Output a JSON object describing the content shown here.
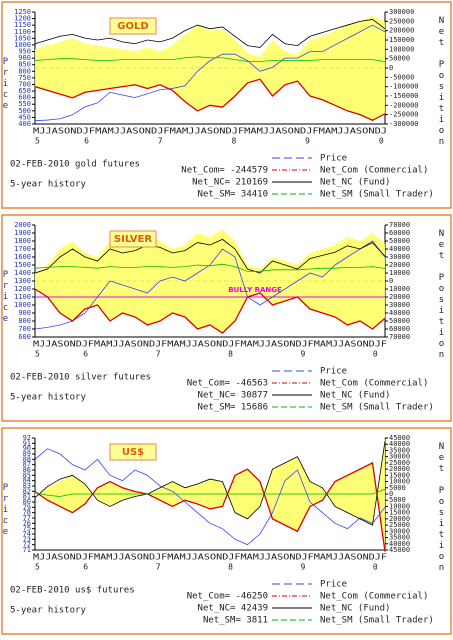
{
  "chart_data": [
    {
      "type": "line",
      "title": "GOLD",
      "subtitle": "02-FEB-2010  gold futures",
      "note": "5-year history",
      "y_label": "Price",
      "y2_label": "Net Position",
      "month_letters": "MJJASONDJFMAMJJASONDJFMAMJJASONDJFMAMJJASONDJFMAMJJASONDJ",
      "year_labels": [
        "5",
        "6",
        "7",
        "8",
        "9",
        "0"
      ],
      "annotations": [
        "Net_Com= -244579",
        "Net_NC= 210169",
        "Net_SM= 34410"
      ],
      "ylim": [
        400,
        1250
      ],
      "yticks": [
        400,
        450,
        500,
        550,
        600,
        650,
        700,
        750,
        800,
        850,
        900,
        950,
        1000,
        1050,
        1100,
        1150,
        1200,
        1250
      ],
      "y2lim": [
        -300000,
        300000
      ],
      "y2ticks": [
        -300000,
        -250000,
        -200000,
        -150000,
        -100000,
        -50000,
        0,
        50000,
        100000,
        150000,
        200000,
        250000,
        300000
      ],
      "series": [
        {
          "name": "Price",
          "color": "#3344ff",
          "values": [
            425,
            430,
            440,
            470,
            530,
            560,
            640,
            620,
            600,
            630,
            660,
            670,
            690,
            800,
            880,
            930,
            930,
            880,
            800,
            830,
            900,
            900,
            950,
            950,
            1000,
            1050,
            1100,
            1150,
            1100
          ]
        },
        {
          "name": "Net_Com (Commercial)",
          "color": "#dd0000",
          "axis": "y2",
          "fill": "#ffff66",
          "values": [
            -100000,
            -120000,
            -140000,
            -160000,
            -130000,
            -120000,
            -110000,
            -100000,
            -90000,
            -110000,
            -90000,
            -120000,
            -180000,
            -230000,
            -200000,
            -210000,
            -150000,
            -80000,
            -60000,
            -150000,
            -90000,
            -70000,
            -150000,
            -170000,
            -200000,
            -230000,
            -250000,
            -280000,
            -245000
          ]
        },
        {
          "name": "Net_NC (Fund)",
          "color": "#000000",
          "axis": "y2",
          "values": [
            130000,
            150000,
            170000,
            180000,
            160000,
            150000,
            160000,
            140000,
            130000,
            150000,
            140000,
            160000,
            200000,
            230000,
            210000,
            220000,
            170000,
            120000,
            110000,
            180000,
            130000,
            120000,
            170000,
            190000,
            210000,
            230000,
            250000,
            260000,
            210000
          ]
        },
        {
          "name": "Net_SM (Small Trader)",
          "color": "#00bb00",
          "axis": "y2",
          "values": [
            40000,
            45000,
            50000,
            50000,
            45000,
            40000,
            40000,
            45000,
            45000,
            45000,
            45000,
            45000,
            55000,
            60000,
            55000,
            55000,
            45000,
            35000,
            35000,
            40000,
            40000,
            40000,
            40000,
            45000,
            45000,
            45000,
            45000,
            45000,
            34000
          ]
        }
      ]
    },
    {
      "type": "line",
      "title": "SILVER",
      "subtitle": "02-FEB-2010  silver futures",
      "note": "5-year history",
      "y_label": "Price",
      "y2_label": "Net Position",
      "month_letters": "MJJASONDJFMAMJJASONDJFMAMJJASONDJFMAMJJASONDJFMAMJJASONDJF",
      "year_labels": [
        "5",
        "6",
        "7",
        "8",
        "9",
        "0"
      ],
      "annotations": [
        "Net_Com= -46563",
        "Net_NC= 30877",
        "Net_SM= 15686"
      ],
      "range_label": "BULLY RANGE",
      "range_value": 1100,
      "ylim": [
        600,
        2000
      ],
      "yticks": [
        600,
        700,
        800,
        900,
        1000,
        1100,
        1200,
        1300,
        1400,
        1500,
        1600,
        1700,
        1800,
        1900,
        2000
      ],
      "y2lim": [
        -70000,
        70000
      ],
      "y2ticks": [
        {
          "value": -70000,
          "label": "70000"
        },
        {
          "value": -60000,
          "label": "60000"
        },
        {
          "value": -50000,
          "label": "50000"
        },
        {
          "value": -40000,
          "label": "40000"
        },
        {
          "value": -30000,
          "label": "30000"
        },
        {
          "value": -20000,
          "label": "20000"
        },
        {
          "value": -10000,
          "label": "10000"
        },
        0,
        10000,
        20000,
        30000,
        40000,
        50000,
        60000,
        70000
      ],
      "series": [
        {
          "name": "Price",
          "color": "#3344ff",
          "values": [
            700,
            720,
            750,
            800,
            900,
            1100,
            1300,
            1250,
            1200,
            1150,
            1300,
            1350,
            1300,
            1400,
            1500,
            1700,
            1600,
            1100,
            1000,
            1100,
            1200,
            1300,
            1400,
            1350,
            1500,
            1600,
            1700,
            1800,
            1600
          ]
        },
        {
          "name": "Net_Com (Commercial)",
          "color": "#dd0000",
          "axis": "y2",
          "fill": "#ffff66",
          "values": [
            -10000,
            -20000,
            -40000,
            -50000,
            -35000,
            -30000,
            -50000,
            -40000,
            -45000,
            -55000,
            -50000,
            -40000,
            -45000,
            -60000,
            -55000,
            -65000,
            -50000,
            -20000,
            -15000,
            -30000,
            -25000,
            -20000,
            -35000,
            -40000,
            -45000,
            -55000,
            -50000,
            -60000,
            -46563
          ]
        },
        {
          "name": "Net_NC (Fund)",
          "color": "#000000",
          "axis": "y2",
          "values": [
            10000,
            15000,
            30000,
            40000,
            30000,
            25000,
            40000,
            35000,
            38000,
            45000,
            42000,
            35000,
            38000,
            48000,
            45000,
            52000,
            40000,
            15000,
            10000,
            25000,
            20000,
            15000,
            28000,
            32000,
            36000,
            44000,
            40000,
            48000,
            30877
          ]
        },
        {
          "name": "Net_SM (Small Trader)",
          "color": "#00bb00",
          "axis": "y2",
          "values": [
            16000,
            17000,
            18000,
            18000,
            17000,
            16000,
            18000,
            17000,
            17000,
            18000,
            18000,
            17000,
            18000,
            20000,
            19000,
            21000,
            18000,
            12000,
            12000,
            14000,
            14000,
            14000,
            15000,
            16000,
            16000,
            17000,
            17000,
            18000,
            15686
          ]
        }
      ]
    },
    {
      "type": "line",
      "title": "US$",
      "subtitle": "02-FEB-2010  us$ futures",
      "note": "5-year history",
      "y_label": "Price",
      "y2_label": "Net Position",
      "month_letters": "MJJASONDJFMAMJJASONDJFMAMJJASONDJFMAMJJASONDJFMAMJJASONDJF",
      "year_labels": [
        "5",
        "6",
        "7",
        "8",
        "9",
        "0"
      ],
      "annotations": [
        "Net_Com= -46250",
        "Net_NC= 42439",
        "Net_SM= 3811"
      ],
      "ylim": [
        71,
        92
      ],
      "yticks": [
        71,
        72,
        73,
        74,
        75,
        76,
        77,
        78,
        79,
        80,
        81,
        82,
        83,
        84,
        85,
        86,
        87,
        88,
        89,
        90,
        91,
        92
      ],
      "y2lim": [
        -45000,
        45000
      ],
      "y2ticks": [
        {
          "value": -45000,
          "label": "45000"
        },
        {
          "value": -40000,
          "label": "40000"
        },
        {
          "value": -35000,
          "label": "35000"
        },
        {
          "value": -30000,
          "label": "30000"
        },
        {
          "value": -25000,
          "label": "25000"
        },
        {
          "value": -20000,
          "label": "20000"
        },
        {
          "value": -15000,
          "label": "15000"
        },
        {
          "value": -10000,
          "label": "10000"
        },
        {
          "value": -5000,
          "label": "5000"
        },
        0,
        5000,
        10000,
        15000,
        20000,
        25000,
        30000,
        35000,
        40000,
        45000
      ],
      "series": [
        {
          "name": "Price",
          "color": "#3344ff",
          "values": [
            88,
            90,
            89,
            87,
            86,
            88,
            85,
            84,
            86,
            85,
            83,
            82,
            80,
            78,
            76,
            75,
            73,
            72,
            74,
            78,
            84,
            86,
            80,
            78,
            76,
            75,
            77,
            76,
            79
          ]
        },
        {
          "name": "Net_Com (Commercial)",
          "color": "#dd0000",
          "axis": "y2",
          "fill": "#ffff66",
          "values": [
            2000,
            -5000,
            -10000,
            -15000,
            -8000,
            5000,
            10000,
            5000,
            2000,
            0,
            -5000,
            -10000,
            -5000,
            -8000,
            -12000,
            -10000,
            15000,
            20000,
            10000,
            -20000,
            -25000,
            -30000,
            -10000,
            -5000,
            10000,
            15000,
            20000,
            25000,
            -46250
          ]
        },
        {
          "name": "Net_NC (Fund)",
          "color": "#000000",
          "axis": "y2",
          "values": [
            -3000,
            6000,
            12000,
            15000,
            8000,
            -5000,
            -10000,
            -5000,
            -2000,
            0,
            5000,
            10000,
            5000,
            8000,
            12000,
            10000,
            -15000,
            -20000,
            -10000,
            20000,
            25000,
            30000,
            10000,
            5000,
            -10000,
            -15000,
            -20000,
            -25000,
            42439
          ]
        },
        {
          "name": "Net_SM (Small Trader)",
          "color": "#00bb00",
          "axis": "y2",
          "values": [
            1000,
            -1000,
            -2000,
            0,
            0,
            0,
            0,
            0,
            0,
            0,
            0,
            0,
            0,
            0,
            0,
            0,
            0,
            0,
            0,
            0,
            0,
            0,
            0,
            0,
            0,
            0,
            0,
            0,
            3811
          ]
        }
      ]
    }
  ]
}
